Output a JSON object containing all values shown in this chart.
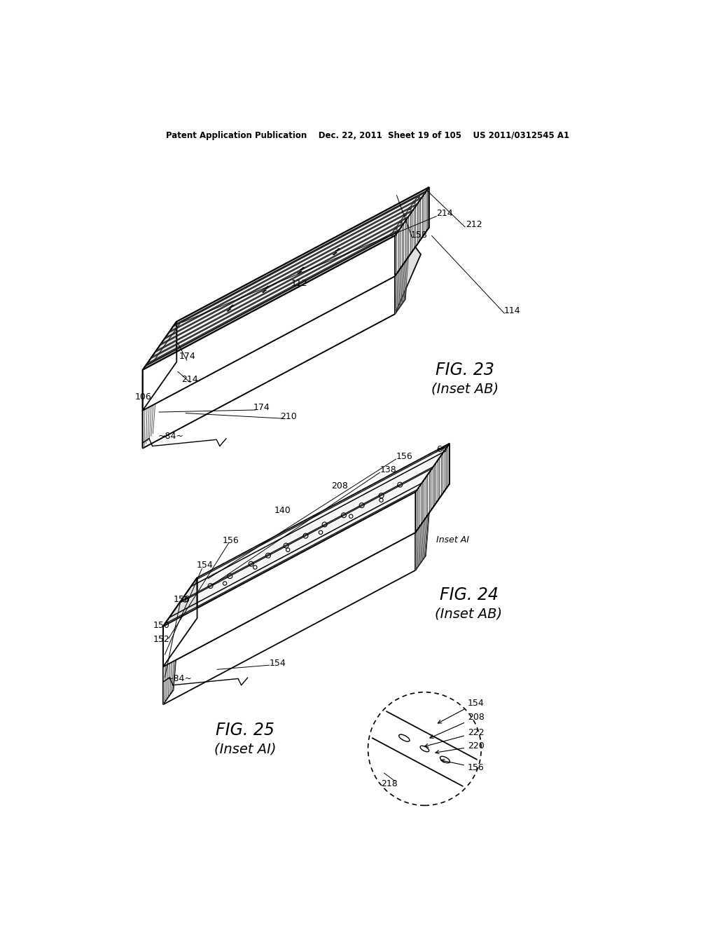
{
  "bg_color": "#ffffff",
  "header_text": "Patent Application Publication    Dec. 22, 2011  Sheet 19 of 105    US 2011/0312545 A1",
  "fig23_title": "FIG. 23",
  "fig23_subtitle": "(Inset AB)",
  "fig24_title": "FIG. 24",
  "fig24_subtitle": "(Inset AB)",
  "fig25_title": "FIG. 25",
  "fig25_subtitle": "(Inset AI)",
  "line_color": "#000000",
  "hatch_color": "#555555",
  "face_light": "#f5f5f5",
  "face_mid": "#e0e0e0",
  "face_dark": "#cccccc"
}
